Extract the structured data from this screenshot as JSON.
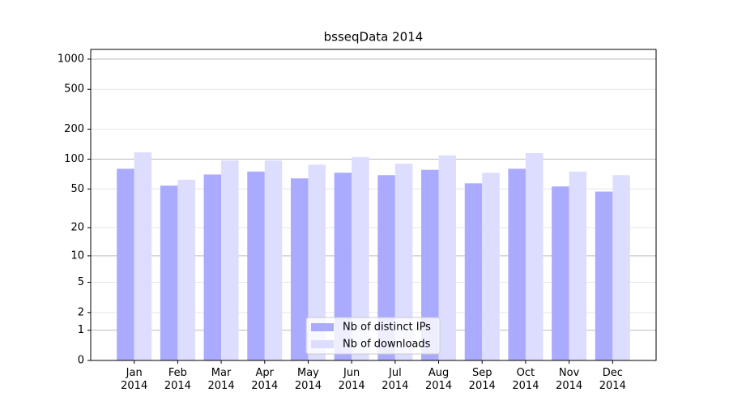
{
  "chart_data": {
    "type": "bar",
    "title": "bsseqData 2014",
    "categories": [
      "Jan\n2014",
      "Feb\n2014",
      "Mar\n2014",
      "Apr\n2014",
      "May\n2014",
      "Jun\n2014",
      "Jul\n2014",
      "Aug\n2014",
      "Sep\n2014",
      "Oct\n2014",
      "Nov\n2014",
      "Dec\n2014"
    ],
    "series": [
      {
        "name": "Nb of distinct IPs",
        "color": "#aaaaff",
        "values": [
          80,
          54,
          70,
          75,
          64,
          73,
          69,
          78,
          57,
          80,
          53,
          47
        ]
      },
      {
        "name": "Nb of downloads",
        "color": "#ddddff",
        "values": [
          117,
          62,
          97,
          97,
          88,
          105,
          90,
          109,
          73,
          115,
          75,
          69
        ]
      }
    ],
    "yscale": "log1p",
    "ylim": [
      0,
      1249
    ],
    "yticks": [
      0,
      1,
      2,
      5,
      10,
      20,
      50,
      100,
      200,
      500,
      1000
    ],
    "grid": true,
    "legend": "lower center"
  }
}
